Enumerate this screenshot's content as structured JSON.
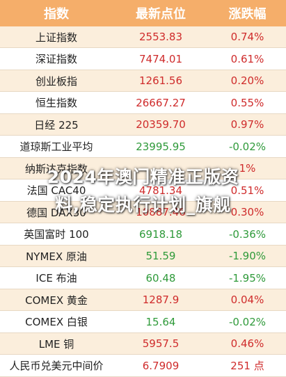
{
  "header": {
    "col_index": "指数",
    "col_price": "最新点位",
    "col_change": "涨跌幅"
  },
  "rows": [
    {
      "name": "上证指数",
      "price": "2553.83",
      "change": "0.74%",
      "dir": "up"
    },
    {
      "name": "深证指数",
      "price": "7474.01",
      "change": "0.61%",
      "dir": "up"
    },
    {
      "name": "创业板指",
      "price": "1261.56",
      "change": "0.20%",
      "dir": "up"
    },
    {
      "name": "恒生指数",
      "price": "26667.27",
      "change": "0.55%",
      "dir": "up"
    },
    {
      "name": "日经 225",
      "price": "20359.70",
      "change": "0.97%",
      "dir": "up"
    },
    {
      "name": "道琼斯工业平均",
      "price": "23995.95",
      "change": "-0.02%",
      "dir": "down"
    },
    {
      "name": "纳斯达克指数",
      "price": "",
      "change": "1%",
      "dir": "up"
    },
    {
      "name": "法国 CAC40",
      "price": "4781.34",
      "change": "0.51%",
      "dir": "up"
    },
    {
      "name": "德国 DAX30",
      "price": "10887.46",
      "change": "0.30%",
      "dir": "up"
    },
    {
      "name": "英国富时 100",
      "price": "6918.18",
      "change": "-0.36%",
      "dir": "down"
    },
    {
      "name": "NYMEX 原油",
      "price": "51.59",
      "change": "-1.90%",
      "dir": "down"
    },
    {
      "name": "ICE 布油",
      "price": "60.48",
      "change": "-1.95%",
      "dir": "down"
    },
    {
      "name": "COMEX 黄金",
      "price": "1287.9",
      "change": "0.04%",
      "dir": "up"
    },
    {
      "name": "COMEX 白银",
      "price": "15.64",
      "change": "-0.02%",
      "dir": "down"
    },
    {
      "name": "LME 铜",
      "price": "5957.5",
      "change": "0.46%",
      "dir": "up"
    },
    {
      "name": "人民币兑美元中间价",
      "price": "6.7909",
      "change": "251 点",
      "dir": "up"
    }
  ],
  "overlay": {
    "line1": "2024年澳门精准正版资",
    "line2": "料,稳定执行计划_旗舰"
  },
  "colors": {
    "header_bg": "#f5ae6a",
    "alt_row": "#fbeedc",
    "up": "#cf2b2b",
    "down": "#2f9a3a"
  }
}
